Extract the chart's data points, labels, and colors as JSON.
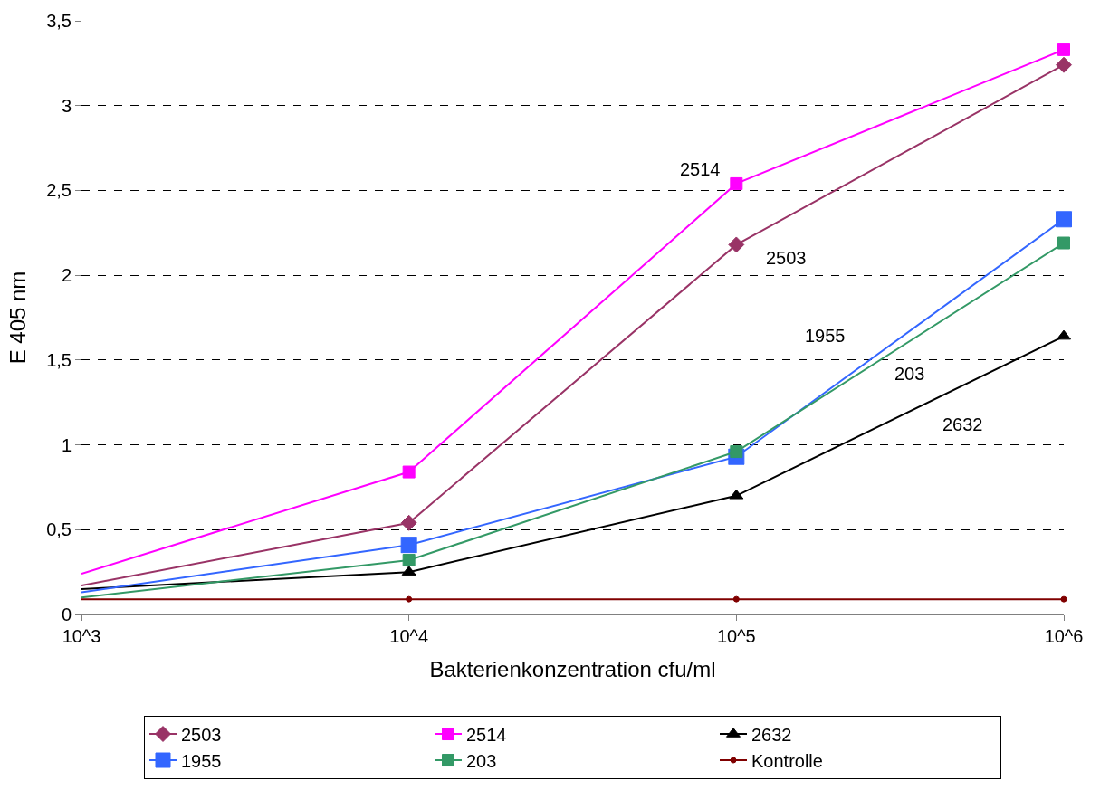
{
  "chart_data": {
    "type": "line",
    "xlabel": "Bakterienkonzentration cfu/ml",
    "ylabel": "E 405 nm",
    "log": "x",
    "x": [
      1000,
      10000,
      100000,
      1000000
    ],
    "xlim": [
      1000,
      1000000
    ],
    "xticks": [
      {
        "value": 1000,
        "label": "10^3"
      },
      {
        "value": 10000,
        "label": "10^4"
      },
      {
        "value": 100000,
        "label": "10^5"
      },
      {
        "value": 1000000,
        "label": "10^6"
      }
    ],
    "ylim": [
      0,
      3.5
    ],
    "yticks": [
      {
        "value": 0,
        "label": "0"
      },
      {
        "value": 0.5,
        "label": "0,5"
      },
      {
        "value": 1,
        "label": "1"
      },
      {
        "value": 1.5,
        "label": "1,5"
      },
      {
        "value": 2,
        "label": "2"
      },
      {
        "value": 2.5,
        "label": "2,5"
      },
      {
        "value": 3,
        "label": "3"
      },
      {
        "value": 3.5,
        "label": "3,5"
      }
    ],
    "grid": "y",
    "legend": "bottom",
    "series": [
      {
        "name": "2503",
        "color": "#993366",
        "marker": "diamond",
        "values": [
          0.17,
          0.54,
          2.18,
          3.24
        ]
      },
      {
        "name": "2514",
        "color": "#ff00ff",
        "marker": "square",
        "values": [
          0.24,
          0.84,
          2.54,
          3.33
        ]
      },
      {
        "name": "2632",
        "color": "#000000",
        "marker": "triangle",
        "values": [
          0.15,
          0.25,
          0.7,
          1.64
        ]
      },
      {
        "name": "1955",
        "color": "#3366ff",
        "marker": "cross",
        "values": [
          0.13,
          0.41,
          0.93,
          2.33
        ]
      },
      {
        "name": "203",
        "color": "#339966",
        "marker": "square",
        "values": [
          0.1,
          0.32,
          0.96,
          2.19
        ]
      },
      {
        "name": "Kontrolle",
        "color": "#800000",
        "marker": "circle",
        "values": [
          0.09,
          0.09,
          0.09,
          0.09
        ]
      }
    ],
    "annotations": [
      "2514",
      "2503",
      "1955",
      "203",
      "2632"
    ]
  }
}
